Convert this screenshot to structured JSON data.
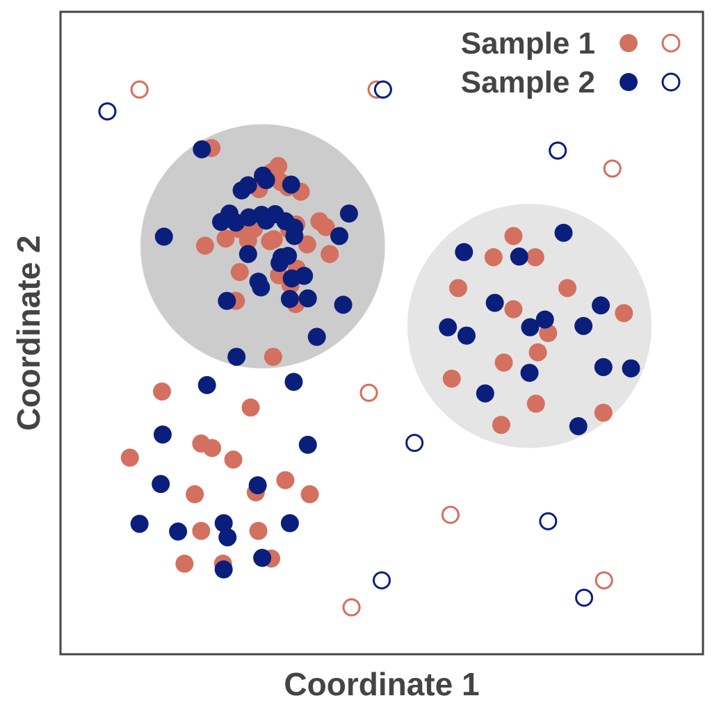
{
  "chart_data": {
    "type": "scatter",
    "xlabel": "Coordinate 1",
    "ylabel": "Coordinate 2",
    "xlim": [
      0,
      100
    ],
    "ylim": [
      0,
      100
    ],
    "grid": false,
    "legend_position": "top-right",
    "colors": {
      "sample1": "#d4705f",
      "sample2": "#0a1f7c",
      "frame": "#444444",
      "cluster_dark": "#cccccc",
      "cluster_light": "#e5e5e5"
    },
    "legend": [
      {
        "label": "Sample 1",
        "color_key": "sample1"
      },
      {
        "label": "Sample 2",
        "color_key": "sample2"
      }
    ],
    "clusters": [
      {
        "cx": 31.4,
        "cy": 63.5,
        "r": 19.0,
        "shade": "cluster_light"
      },
      {
        "cx": 73.0,
        "cy": 51.1,
        "r": 19.0,
        "shade": "cluster_light"
      },
      {
        "cx": 31.5,
        "cy": 63.5,
        "r": 19.0,
        "shade": "cluster_dark"
      }
    ],
    "series": [
      {
        "name": "Sample 1",
        "color_key": "sample1",
        "filled": true,
        "points": [
          [
            23.5,
            78.8
          ],
          [
            30.9,
            72.4
          ],
          [
            34.3,
            73.5
          ],
          [
            32.8,
            75.0
          ],
          [
            33.9,
            76.0
          ],
          [
            35.4,
            72.7
          ],
          [
            37.4,
            72.0
          ],
          [
            40.3,
            67.4
          ],
          [
            41.3,
            66.5
          ],
          [
            22.5,
            63.6
          ],
          [
            25.7,
            64.7
          ],
          [
            27.8,
            66.2
          ],
          [
            29.2,
            64.4
          ],
          [
            30.1,
            66.2
          ],
          [
            30.5,
            67.1
          ],
          [
            32.6,
            64.3
          ],
          [
            33.2,
            64.6
          ],
          [
            35.6,
            66.1
          ],
          [
            36.7,
            66.9
          ],
          [
            38.4,
            63.8
          ],
          [
            41.9,
            62.3
          ],
          [
            27.9,
            59.5
          ],
          [
            34.0,
            59.0
          ],
          [
            35.8,
            57.5
          ],
          [
            36.8,
            60.0
          ],
          [
            27.3,
            55.0
          ],
          [
            36.6,
            54.5
          ],
          [
            33.1,
            46.3
          ],
          [
            15.8,
            40.9
          ],
          [
            29.6,
            38.4
          ],
          [
            21.9,
            32.8
          ],
          [
            23.6,
            32.1
          ],
          [
            26.9,
            30.3
          ],
          [
            35.0,
            27.1
          ],
          [
            20.9,
            24.9
          ],
          [
            30.4,
            25.2
          ],
          [
            38.8,
            24.9
          ],
          [
            10.8,
            30.6
          ],
          [
            21.9,
            19.2
          ],
          [
            30.8,
            19.2
          ],
          [
            19.3,
            14.1
          ],
          [
            25.3,
            14.1
          ],
          [
            32.8,
            14.9
          ],
          [
            70.5,
            65.1
          ],
          [
            67.4,
            61.8
          ],
          [
            73.9,
            61.8
          ],
          [
            61.9,
            57.0
          ],
          [
            78.9,
            57.0
          ],
          [
            70.5,
            53.7
          ],
          [
            87.7,
            53.1
          ],
          [
            75.9,
            50.0
          ],
          [
            74.3,
            47.0
          ],
          [
            69.0,
            45.4
          ],
          [
            60.9,
            42.9
          ],
          [
            74.0,
            39.0
          ],
          [
            68.6,
            35.7
          ],
          [
            84.5,
            37.6
          ],
          [
            48.0,
            40.7
          ],
          [
            60.7,
            21.7
          ],
          [
            84.6,
            11.5
          ],
          [
            45.3,
            7.3
          ],
          [
            12.3,
            87.9
          ],
          [
            49.2,
            87.9
          ],
          [
            85.9,
            75.6
          ]
        ]
      },
      {
        "name": "Sample 2",
        "color_key": "sample2",
        "filled": true,
        "points": [
          [
            22.0,
            78.6
          ],
          [
            31.5,
            74.5
          ],
          [
            32.0,
            73.8
          ],
          [
            29.2,
            73.0
          ],
          [
            35.9,
            73.1
          ],
          [
            28.2,
            72.2
          ],
          [
            26.3,
            68.6
          ],
          [
            25.0,
            67.3
          ],
          [
            27.3,
            67.2
          ],
          [
            29.3,
            68.0
          ],
          [
            31.3,
            68.4
          ],
          [
            33.4,
            68.5
          ],
          [
            32.0,
            67.5
          ],
          [
            35.0,
            67.4
          ],
          [
            36.4,
            66.4
          ],
          [
            36.4,
            65.1
          ],
          [
            44.9,
            68.6
          ],
          [
            43.4,
            65.1
          ],
          [
            16.1,
            65.0
          ],
          [
            29.2,
            62.3
          ],
          [
            35.4,
            62.0
          ],
          [
            34.4,
            61.8
          ],
          [
            34.1,
            60.9
          ],
          [
            37.9,
            58.9
          ],
          [
            36.0,
            58.5
          ],
          [
            30.8,
            58.0
          ],
          [
            31.2,
            57.1
          ],
          [
            35.7,
            55.3
          ],
          [
            38.5,
            55.4
          ],
          [
            25.9,
            55.0
          ],
          [
            44.0,
            54.4
          ],
          [
            39.9,
            49.4
          ],
          [
            27.4,
            46.3
          ],
          [
            22.8,
            41.9
          ],
          [
            36.3,
            42.4
          ],
          [
            15.9,
            34.2
          ],
          [
            38.5,
            32.6
          ],
          [
            15.6,
            26.5
          ],
          [
            30.7,
            26.3
          ],
          [
            12.3,
            20.3
          ],
          [
            18.3,
            19.1
          ],
          [
            25.4,
            20.4
          ],
          [
            26.0,
            18.2
          ],
          [
            35.7,
            20.4
          ],
          [
            31.4,
            15.0
          ],
          [
            25.4,
            13.2
          ],
          [
            62.8,
            62.6
          ],
          [
            71.4,
            61.9
          ],
          [
            78.3,
            65.6
          ],
          [
            67.6,
            54.7
          ],
          [
            75.4,
            52.1
          ],
          [
            73.1,
            50.9
          ],
          [
            84.1,
            54.3
          ],
          [
            81.4,
            51.1
          ],
          [
            60.3,
            50.9
          ],
          [
            63.2,
            49.6
          ],
          [
            73.0,
            43.8
          ],
          [
            84.5,
            44.7
          ],
          [
            88.8,
            44.5
          ],
          [
            66.1,
            40.6
          ],
          [
            80.6,
            35.5
          ],
          [
            7.3,
            84.5
          ],
          [
            50.2,
            87.9
          ],
          [
            77.4,
            78.4
          ]
        ]
      },
      {
        "name": "Sample 1",
        "color_key": "sample1",
        "filled": false,
        "points": [
          [
            12.3,
            87.9
          ],
          [
            49.2,
            87.9
          ],
          [
            85.9,
            75.6
          ],
          [
            48.0,
            40.7
          ],
          [
            60.7,
            21.7
          ],
          [
            84.6,
            11.5
          ],
          [
            45.3,
            7.3
          ]
        ]
      },
      {
        "name": "Sample 2",
        "color_key": "sample2",
        "filled": false,
        "points": [
          [
            7.3,
            84.5
          ],
          [
            50.2,
            87.9
          ],
          [
            77.4,
            78.4
          ],
          [
            55.1,
            32.9
          ],
          [
            75.9,
            20.7
          ],
          [
            50.0,
            11.5
          ],
          [
            81.5,
            8.8
          ]
        ]
      }
    ]
  }
}
